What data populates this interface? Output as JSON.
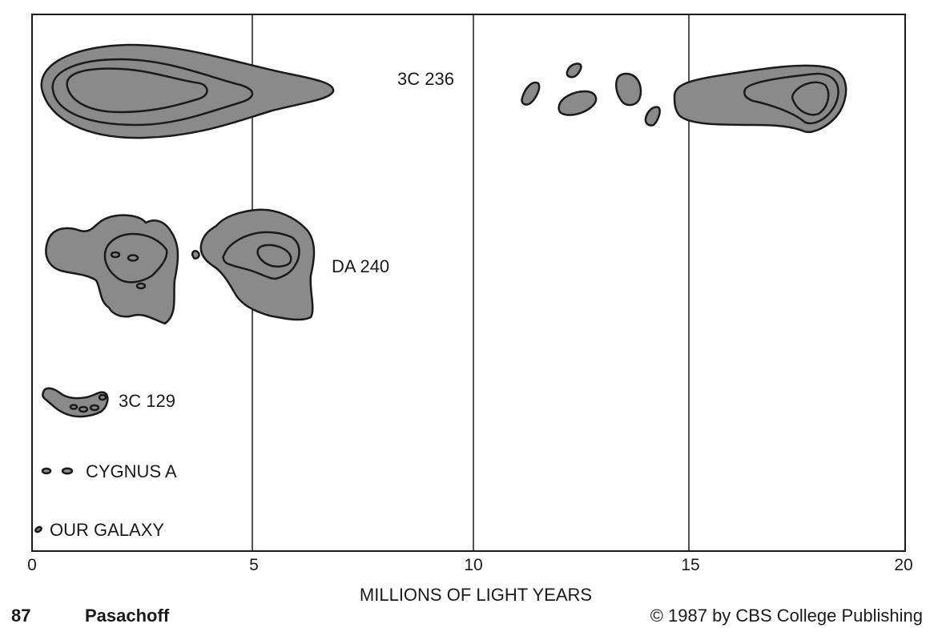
{
  "axis": {
    "xlabel": "MILLIONS OF LIGHT YEARS",
    "xlim": [
      0,
      20
    ],
    "ticks": [
      "0",
      "5",
      "10",
      "15",
      "20"
    ],
    "gridlines_at": [
      5,
      10,
      15
    ]
  },
  "sources": [
    {
      "label": "3C 236",
      "extent_mly": [
        0.2,
        18.6
      ]
    },
    {
      "label": "DA 240",
      "extent_mly": [
        0.3,
        6.6
      ]
    },
    {
      "label": "3C 129",
      "extent_mly": [
        0.3,
        1.8
      ]
    },
    {
      "label": "CYGNUS A",
      "extent_mly": [
        0.3,
        0.9
      ]
    },
    {
      "label": "OUR GALAXY",
      "extent_mly": [
        0.1,
        0.25
      ]
    }
  ],
  "footer": {
    "page": "87",
    "author": "Pasachoff",
    "copyright": "© 1987 by CBS College Publishing"
  },
  "colors": {
    "fill": "#8a8a8a",
    "line": "#1a1a1a"
  }
}
